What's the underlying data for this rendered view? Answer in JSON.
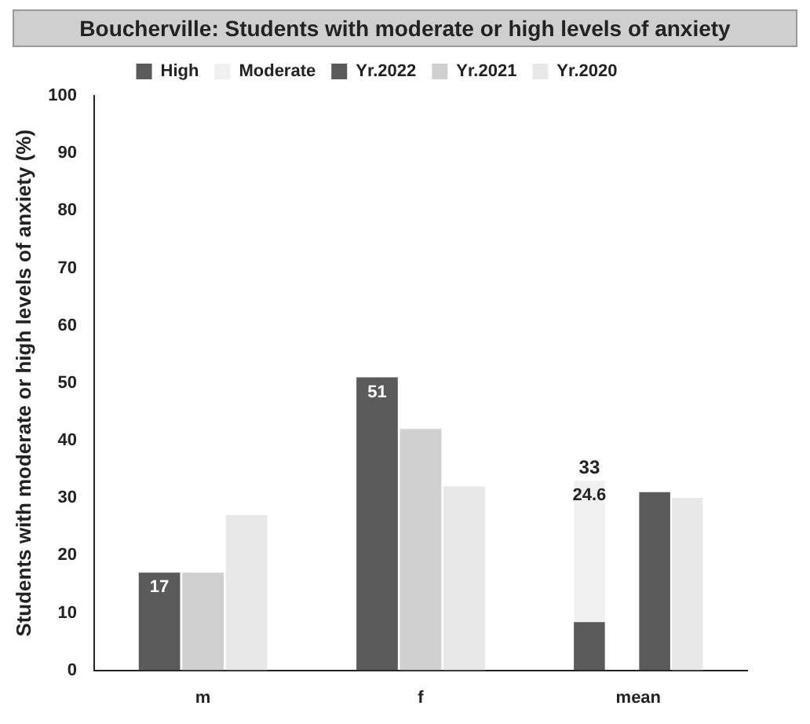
{
  "chart_data": {
    "type": "bar",
    "title": "Boucherville: Students with moderate or high levels of anxiety",
    "ylabel": "Students with moderate or high levels of anxiety (%)",
    "categories": [
      "m",
      "f",
      "mean"
    ],
    "series": [
      {
        "name": "High",
        "color": "#5a5a5a",
        "values": [
          null,
          null,
          8.4
        ]
      },
      {
        "name": "Moderate",
        "color": "#f0f0f0",
        "values": [
          null,
          null,
          24.6
        ],
        "base": [
          null,
          null,
          8.4
        ],
        "value_labels": [
          null,
          null,
          "24.6"
        ]
      },
      {
        "name": "Yr.2022",
        "color": "#5a5a5a",
        "values": [
          17,
          51,
          31
        ],
        "value_labels": [
          "17",
          "51",
          null
        ]
      },
      {
        "name": "Yr.2021",
        "color": "#cfcfcf",
        "values": [
          17,
          42,
          null
        ]
      },
      {
        "name": "Yr.2020",
        "color": "#e8e8e8",
        "values": [
          27,
          32,
          30
        ]
      }
    ],
    "annotations": [
      "33"
    ],
    "ylim": [
      0,
      100
    ],
    "yticks": [
      0,
      10,
      20,
      30,
      40,
      50,
      60,
      70,
      80,
      90,
      100
    ],
    "grid": false,
    "legend": "top"
  }
}
